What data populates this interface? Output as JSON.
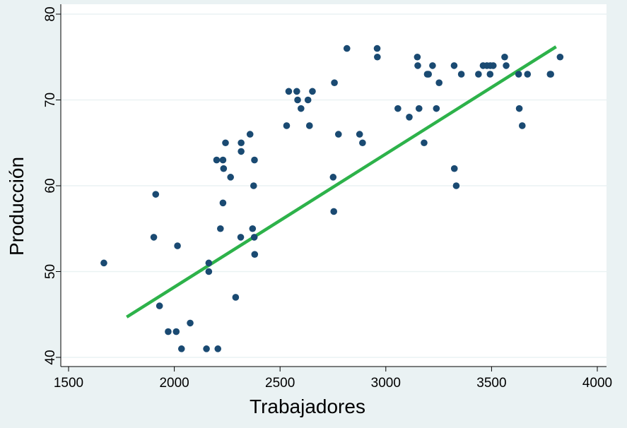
{
  "chart_data": {
    "type": "scatter",
    "title": "",
    "xlabel": "Trabajadores",
    "ylabel": "Producción",
    "xlim": [
      1500,
      4000
    ],
    "ylim": [
      40,
      80
    ],
    "xticks": [
      "1500",
      "2000",
      "2500",
      "3000",
      "3500",
      "4000"
    ],
    "yticks": [
      "40",
      "50",
      "60",
      "70",
      "80"
    ],
    "grid": "horizontal",
    "colors": {
      "points": "#1a4a72",
      "fit_line": "#2db24a",
      "plot_bg": "#ffffff",
      "outer_bg": "#eaf2f3",
      "grid": "#eaf2f3"
    },
    "series": [
      {
        "type": "scatter",
        "points": [
          [
            1667,
            51
          ],
          [
            1903,
            54
          ],
          [
            1912,
            59
          ],
          [
            1930,
            46
          ],
          [
            1971,
            43
          ],
          [
            2009,
            43
          ],
          [
            2015,
            53
          ],
          [
            2034,
            41
          ],
          [
            2075,
            44
          ],
          [
            2152,
            41
          ],
          [
            2163,
            51
          ],
          [
            2163,
            50
          ],
          [
            2200,
            63
          ],
          [
            2206,
            41
          ],
          [
            2218,
            55
          ],
          [
            2230,
            58
          ],
          [
            2230,
            63
          ],
          [
            2233,
            62
          ],
          [
            2242,
            65
          ],
          [
            2266,
            61
          ],
          [
            2290,
            47
          ],
          [
            2314,
            54
          ],
          [
            2316,
            65
          ],
          [
            2316,
            64
          ],
          [
            2358,
            66
          ],
          [
            2370,
            55
          ],
          [
            2375,
            60
          ],
          [
            2378,
            54
          ],
          [
            2380,
            52
          ],
          [
            2379,
            63
          ],
          [
            2531,
            67
          ],
          [
            2541,
            71
          ],
          [
            2579,
            71
          ],
          [
            2583,
            70
          ],
          [
            2599,
            69
          ],
          [
            2632,
            70
          ],
          [
            2639,
            67
          ],
          [
            2653,
            71
          ],
          [
            2751,
            61
          ],
          [
            2754,
            57
          ],
          [
            2757,
            72
          ],
          [
            2776,
            66
          ],
          [
            2816,
            76
          ],
          [
            2876,
            66
          ],
          [
            2890,
            65
          ],
          [
            2959,
            76
          ],
          [
            2960,
            75
          ],
          [
            3057,
            69
          ],
          [
            3111,
            68
          ],
          [
            3149,
            75
          ],
          [
            3151,
            74
          ],
          [
            3157,
            69
          ],
          [
            3181,
            65
          ],
          [
            3196,
            73
          ],
          [
            3202,
            73
          ],
          [
            3221,
            74
          ],
          [
            3239,
            69
          ],
          [
            3252,
            72
          ],
          [
            3323,
            74
          ],
          [
            3324,
            62
          ],
          [
            3333,
            60
          ],
          [
            3357,
            73
          ],
          [
            3438,
            73
          ],
          [
            3460,
            74
          ],
          [
            3478,
            74
          ],
          [
            3493,
            73
          ],
          [
            3494,
            74
          ],
          [
            3508,
            74
          ],
          [
            3562,
            75
          ],
          [
            3569,
            74
          ],
          [
            3628,
            73
          ],
          [
            3631,
            69
          ],
          [
            3645,
            67
          ],
          [
            3670,
            73
          ],
          [
            3777,
            73
          ],
          [
            3780,
            73
          ],
          [
            3824,
            75
          ]
        ]
      },
      {
        "type": "line",
        "points": [
          [
            1775,
            44.7
          ],
          [
            3805,
            76.2
          ]
        ]
      }
    ]
  }
}
